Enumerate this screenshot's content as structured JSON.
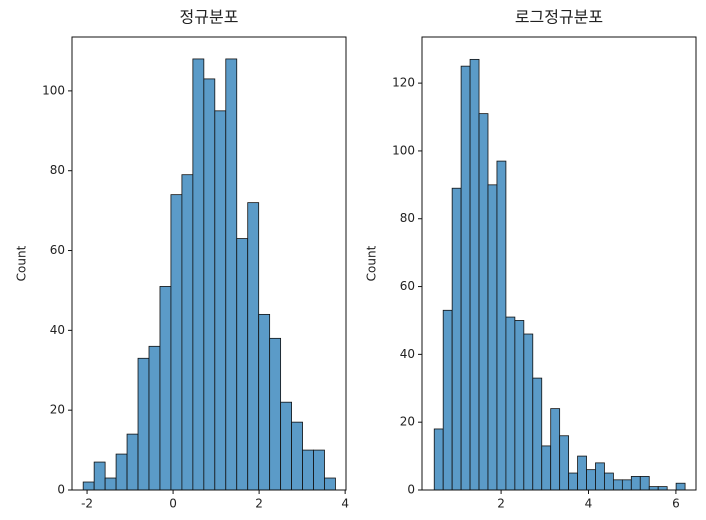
{
  "chart_data": [
    {
      "type": "histogram",
      "title": "정규분포",
      "ylabel": "Count",
      "color": "#5b9bc8",
      "bins": [
        -2.09,
        -1.835,
        -1.58,
        -1.325,
        -1.07,
        -0.815,
        -0.56,
        -0.305,
        -0.05,
        0.205,
        0.46,
        0.715,
        0.97,
        1.225,
        1.48,
        1.735,
        1.99,
        2.245,
        2.5,
        2.755,
        3.01,
        3.265,
        3.52,
        3.775
      ],
      "values": [
        2,
        7,
        3,
        9,
        14,
        33,
        36,
        51,
        74,
        79,
        108,
        103,
        95,
        108,
        63,
        72,
        44,
        38,
        22,
        17,
        10,
        10,
        3
      ],
      "xlim": [
        -2.35,
        4.02
      ],
      "xticks": [
        -2,
        0,
        2,
        4
      ],
      "ylim": [
        0,
        113.5
      ],
      "yticks": [
        0,
        20,
        40,
        60,
        80,
        100
      ]
    },
    {
      "type": "histogram",
      "title": "로그정규분포",
      "ylabel": "Count",
      "color": "#5b9bc8",
      "bins": [
        0.47,
        0.675,
        0.88,
        1.085,
        1.29,
        1.495,
        1.7,
        1.905,
        2.11,
        2.315,
        2.52,
        2.725,
        2.93,
        3.135,
        3.34,
        3.545,
        3.75,
        3.955,
        4.16,
        4.365,
        4.57,
        4.775,
        4.98,
        5.185,
        5.39,
        5.595,
        5.8,
        6.005,
        6.21
      ],
      "values": [
        18,
        53,
        89,
        125,
        127,
        111,
        90,
        97,
        51,
        50,
        46,
        33,
        13,
        24,
        16,
        5,
        10,
        6,
        8,
        5,
        3,
        3,
        4,
        4,
        1,
        1,
        0,
        2
      ],
      "xlim": [
        0.19,
        6.46
      ],
      "xticks": [
        2,
        4,
        6
      ],
      "ylim": [
        0,
        133.6
      ],
      "yticks": [
        0,
        20,
        40,
        60,
        80,
        100,
        120
      ]
    }
  ]
}
